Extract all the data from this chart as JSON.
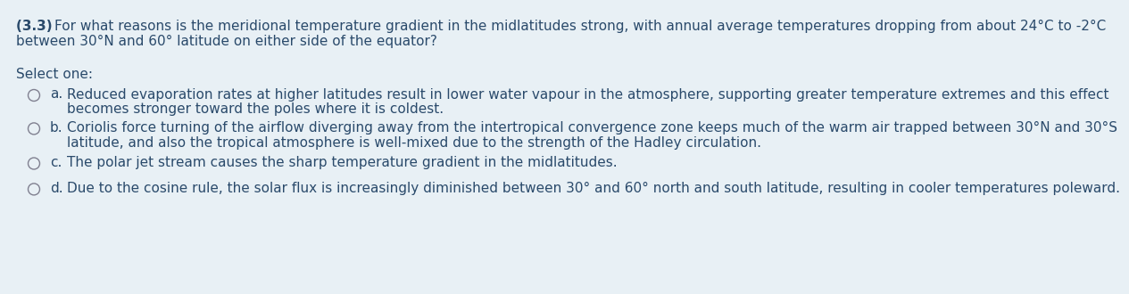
{
  "background_color": "#e8f0f5",
  "question_number": "(3.3) ",
  "question_line1": "For what reasons is the meridional temperature gradient in the midlatitudes strong, with annual average temperatures dropping from about 24°C to -2°C",
  "question_line2": "between 30°N and 60° latitude on either side of the equator?",
  "select_one_label": "Select one:",
  "options": [
    {
      "label": "a.",
      "line1": "Reduced evaporation rates at higher latitudes result in lower water vapour in the atmosphere, supporting greater temperature extremes and this effect",
      "line2": "becomes stronger toward the poles where it is coldest.",
      "line3": ""
    },
    {
      "label": "b.",
      "line1": "Coriolis force turning of the airflow diverging away from the intertropical convergence zone keeps much of the warm air trapped between 30°N and 30°S",
      "line2": "latitude, and also the tropical atmosphere is well-mixed due to the strength of the Hadley circulation.",
      "line3": ""
    },
    {
      "label": "c.",
      "line1": "The polar jet stream causes the sharp temperature gradient in the midlatitudes.",
      "line2": "",
      "line3": ""
    },
    {
      "label": "d.",
      "line1": "Due to the cosine rule, the solar flux is increasingly diminished between 30° and 60° north and south latitude, resulting in cooler temperatures poleward.",
      "line2": "",
      "line3": ""
    }
  ],
  "text_color": "#2a4a6b",
  "font_size_question": 11.0,
  "font_size_options": 11.0,
  "font_size_select": 11.0,
  "fig_width": 12.0,
  "fig_height": 3.1
}
